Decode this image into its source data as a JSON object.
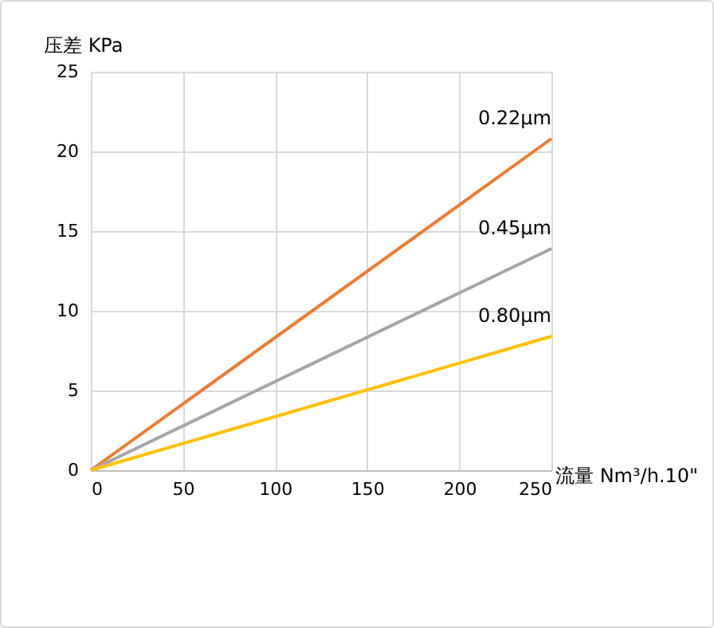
{
  "chart_data": {
    "type": "line",
    "xlabel": "流量  Nm³/h.10\"",
    "ylabel": "压差 KPa",
    "x": [
      0,
      250
    ],
    "series": [
      {
        "name": "0.22μm",
        "color": "#ed7d31",
        "values": [
          0,
          20.8
        ]
      },
      {
        "name": "0.45μm",
        "color": "#a5a5a5",
        "values": [
          0,
          13.9
        ]
      },
      {
        "name": "0.80μm",
        "color": "#ffc000",
        "values": [
          0,
          8.4
        ]
      }
    ],
    "xlim": [
      0,
      250
    ],
    "xticks": [
      0,
      50,
      100,
      150,
      200,
      250
    ],
    "ylim": [
      0,
      25
    ],
    "yticks": [
      0,
      5,
      10,
      15,
      20,
      25
    ],
    "grid": true,
    "legend": false,
    "marker": "none",
    "line_style": "solid"
  }
}
